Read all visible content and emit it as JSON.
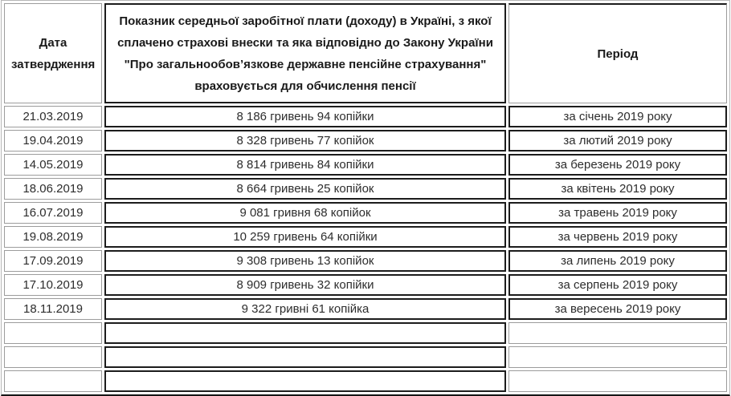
{
  "chart_data": {
    "type": "table",
    "columns": [
      "Дата затвердження",
      "Показник середньої заробітної плати (доходу) в Україні, з якої сплачено страхові внески та яка відповідно до Закону України \"Про загальнообов’язкове державне пенсійне страхування\" враховується для обчислення пенсії",
      "Період"
    ],
    "rows": [
      [
        "21.03.2019",
        "8 186 гривень 94 копійки",
        "за січень 2019 року"
      ],
      [
        "19.04.2019",
        "8 328 гривень 77 копійок",
        "за лютий 2019 року"
      ],
      [
        "14.05.2019",
        "8 814 гривень 84 копійки",
        "за березень 2019 року"
      ],
      [
        "18.06.2019",
        "8 664 гривень 25 копійок",
        "за квітень 2019 року"
      ],
      [
        "16.07.2019",
        "9 081 гривня 68 копійок",
        "за травень 2019 року"
      ],
      [
        "19.08.2019",
        "10 259 гривень 64 копійки",
        "за червень 2019 року"
      ],
      [
        "17.09.2019",
        "9 308 гривень 13 копійок",
        "за липень 2019 року"
      ],
      [
        "17.10.2019",
        "8 909 гривень 32 копійки",
        "за серпень 2019 року"
      ],
      [
        "18.11.2019",
        "9 322 гривні 61 копійка",
        "за вересень 2019 року"
      ],
      [
        "",
        "",
        ""
      ],
      [
        "",
        "",
        ""
      ],
      [
        "",
        "",
        ""
      ]
    ]
  },
  "styles": {
    "light_border_color": "#9c9c9c",
    "dark_border_color": "#1c1c1c",
    "text_color": "#2d2d2d",
    "background_color": "#ffffff"
  }
}
